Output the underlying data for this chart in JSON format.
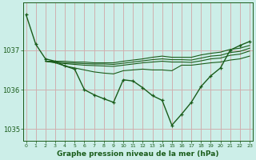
{
  "bg_color": "#cceee8",
  "grid_color": "#d0b0b0",
  "line_color": "#1a5c1a",
  "xlabel": "Graphe pression niveau de la mer (hPa)",
  "ylim": [
    1034.7,
    1038.2
  ],
  "xlim": [
    -0.3,
    23.3
  ],
  "yticks": [
    1035,
    1036,
    1037
  ],
  "series_main": [
    1037.9,
    1037.15,
    1036.78,
    1036.72,
    1036.6,
    1036.52,
    1036.0,
    1035.87,
    1035.77,
    1035.68,
    1036.25,
    1036.22,
    1036.05,
    1035.85,
    1035.73,
    1035.1,
    1035.38,
    1035.68,
    1036.08,
    1036.35,
    1036.55,
    1037.0,
    1037.12,
    1037.22
  ],
  "series_flat1": [
    null,
    null,
    1036.72,
    1036.72,
    1036.72,
    1036.7,
    1036.7,
    1036.68,
    1036.68,
    1036.68,
    1036.72,
    1036.75,
    1036.78,
    1036.82,
    1036.85,
    1036.82,
    1036.82,
    1036.82,
    1036.88,
    1036.92,
    1036.95,
    1037.02,
    1037.05,
    1037.12
  ],
  "series_flat2": [
    null,
    null,
    1036.72,
    1036.7,
    1036.68,
    1036.67,
    1036.66,
    1036.65,
    1036.65,
    1036.64,
    1036.67,
    1036.7,
    1036.73,
    1036.76,
    1036.78,
    1036.76,
    1036.76,
    1036.75,
    1036.8,
    1036.85,
    1036.87,
    1036.94,
    1036.97,
    1037.05
  ],
  "series_flat3": [
    null,
    null,
    1036.72,
    1036.69,
    1036.66,
    1036.64,
    1036.62,
    1036.61,
    1036.6,
    1036.59,
    1036.62,
    1036.65,
    1036.68,
    1036.7,
    1036.72,
    1036.7,
    1036.7,
    1036.69,
    1036.73,
    1036.78,
    1036.8,
    1036.87,
    1036.9,
    1036.98
  ],
  "series_mid": [
    null,
    null,
    1036.72,
    1036.68,
    1036.6,
    1036.55,
    1036.5,
    1036.45,
    1036.42,
    1036.4,
    1036.48,
    1036.5,
    1036.52,
    1036.5,
    1036.5,
    1036.48,
    1036.62,
    1036.62,
    1036.65,
    1036.68,
    1036.7,
    1036.75,
    1036.78,
    1036.85
  ]
}
